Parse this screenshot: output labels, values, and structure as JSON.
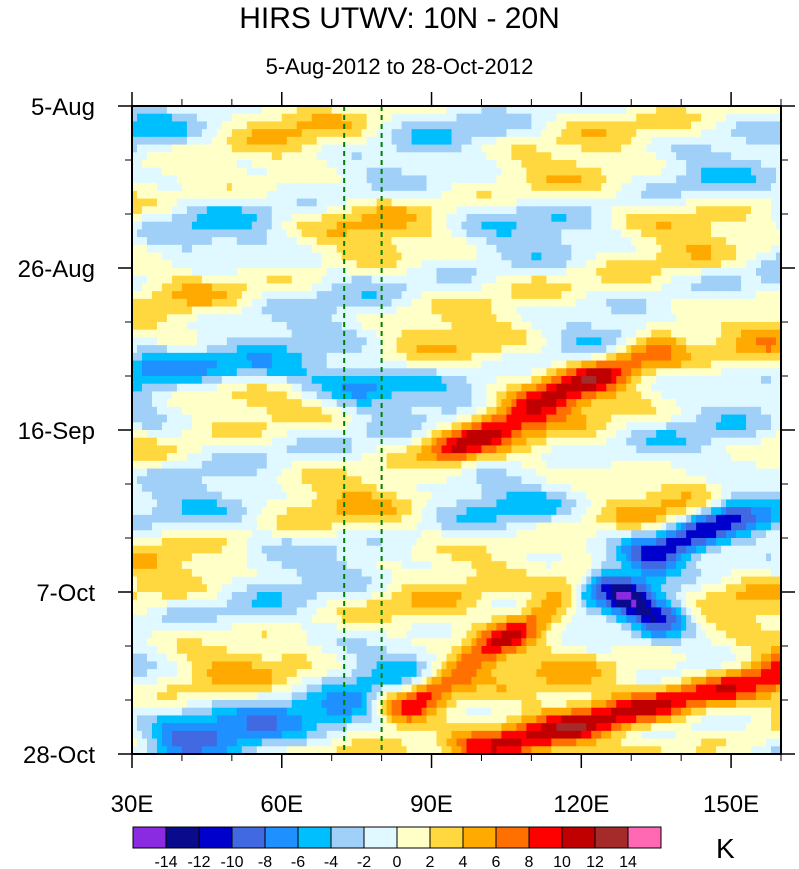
{
  "chart_data": {
    "type": "heatmap",
    "title": "HIRS UTWV: 10N - 20N",
    "subtitle": "5-Aug-2012 to 28-Oct-2012",
    "xlabel": "",
    "ylabel": "",
    "xlim": [
      30,
      160
    ],
    "x_ticks": [
      {
        "value": 30,
        "label": "30E"
      },
      {
        "value": 60,
        "label": "60E"
      },
      {
        "value": 90,
        "label": "90E"
      },
      {
        "value": 120,
        "label": "120E"
      },
      {
        "value": 150,
        "label": "150E"
      }
    ],
    "x_minor_step": 10,
    "ylim_days": [
      0,
      84
    ],
    "y_ticks": [
      {
        "day": 0,
        "label": "5-Aug"
      },
      {
        "day": 21,
        "label": "26-Aug"
      },
      {
        "day": 42,
        "label": "16-Sep"
      },
      {
        "day": 63,
        "label": "7-Oct"
      },
      {
        "day": 84,
        "label": "28-Oct"
      }
    ],
    "y_minor_step_days": 7,
    "reference_lines": [
      {
        "x": 72.5,
        "color": "#008000",
        "style": "dashed"
      },
      {
        "x": 80,
        "color": "#008000",
        "style": "dashed"
      }
    ],
    "colorbar": {
      "units": "K",
      "tick_labels": [
        "-14",
        "-12",
        "-10",
        "-8",
        "-6",
        "-4",
        "-2",
        "0",
        "2",
        "4",
        "6",
        "8",
        "10",
        "12",
        "14"
      ],
      "levels": [
        -14,
        -12,
        -10,
        -8,
        -6,
        -4,
        -2,
        0,
        2,
        4,
        6,
        8,
        10,
        12,
        14
      ],
      "colors": [
        "#8a2be2",
        "#0a0a8c",
        "#0000cd",
        "#4169e1",
        "#1e90ff",
        "#00bfff",
        "#a0d0f8",
        "#e0f8ff",
        "#ffffc8",
        "#ffd840",
        "#ffaa00",
        "#ff7000",
        "#ff0000",
        "#c00000",
        "#a52a2a",
        "#ff69b4"
      ]
    },
    "features": [
      {
        "name": "eastward-propagating warm anomaly, late Aug–Sep",
        "from": [
          95,
          44
        ],
        "to": [
          135,
          31
        ],
        "peak": 9
      },
      {
        "name": "eastward-propagating warm anomaly, Oct",
        "from": [
          85,
          78
        ],
        "to": [
          120,
          62
        ],
        "peak": 9
      },
      {
        "name": "eastward-propagating warm anomaly, late Oct",
        "from": [
          100,
          84
        ],
        "to": [
          160,
          73
        ],
        "peak": 12
      },
      {
        "name": "cold anomaly near 130E",
        "from": [
          125,
          62
        ],
        "to": [
          135,
          66
        ],
        "peak": -12
      },
      {
        "name": "cold anomaly near 140E",
        "from": [
          135,
          58
        ],
        "to": [
          150,
          53
        ],
        "peak": -11
      },
      {
        "name": "cold band, late Oct",
        "from": [
          40,
          82
        ],
        "to": [
          75,
          78
        ],
        "peak": -7
      },
      {
        "name": "cold band, early Sep",
        "from": [
          35,
          33
        ],
        "to": [
          75,
          36
        ],
        "peak": -6
      }
    ]
  }
}
